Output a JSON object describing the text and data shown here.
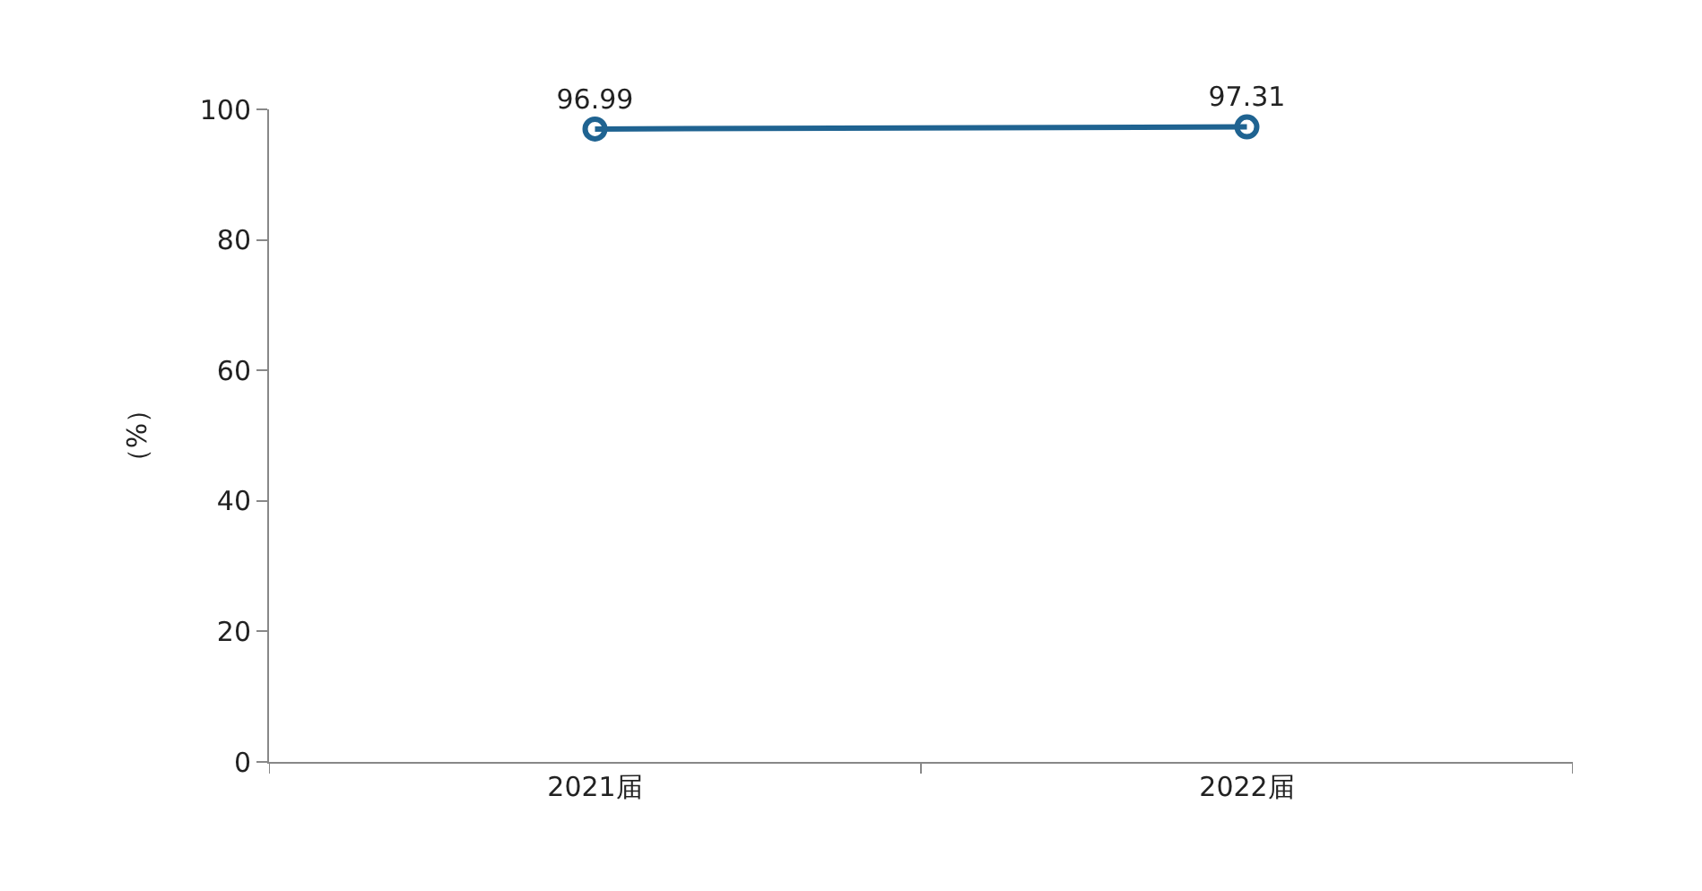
{
  "chart_data": {
    "type": "line",
    "ylabel": "（%）",
    "categories": [
      "2021届",
      "2022届"
    ],
    "series": [
      {
        "color": "#1f6391",
        "values": [
          96.99,
          97.31
        ]
      }
    ],
    "ylim": [
      0,
      100
    ],
    "yticks": [
      0,
      20,
      40,
      60,
      80,
      100
    ],
    "grid": false,
    "legend": false,
    "marker": "circle",
    "line_style": "solid",
    "data_labels": true
  }
}
